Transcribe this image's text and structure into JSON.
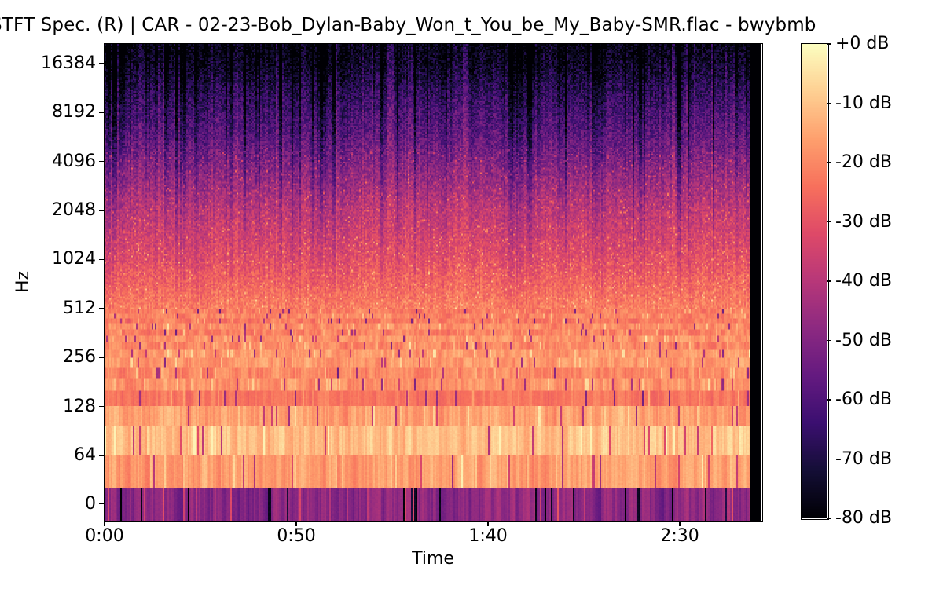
{
  "figure": {
    "background": "#ffffff",
    "axis_color": "#000000",
    "text_color": "#000000"
  },
  "chart_data": {
    "type": "heatmap",
    "subtype": "stft-spectrogram",
    "title": "STFT Spec. (R) | CAR - 02-23-Bob_Dylan-Baby_Won_t_You_be_My_Baby-SMR.flac - bwybmb",
    "xlabel": "Time",
    "ylabel": "Hz",
    "x_ticks": [
      {
        "label": "0:00",
        "seconds": 0
      },
      {
        "label": "0:50",
        "seconds": 50
      },
      {
        "label": "1:40",
        "seconds": 100
      },
      {
        "label": "2:30",
        "seconds": 150
      }
    ],
    "y_scale": "log",
    "y_ticks": [
      {
        "label": "16384",
        "hz": 16384
      },
      {
        "label": "8192",
        "hz": 8192
      },
      {
        "label": "4096",
        "hz": 4096
      },
      {
        "label": "2048",
        "hz": 2048
      },
      {
        "label": "1024",
        "hz": 1024
      },
      {
        "label": "512",
        "hz": 512
      },
      {
        "label": "256",
        "hz": 256
      },
      {
        "label": "128",
        "hz": 128
      },
      {
        "label": "64",
        "hz": 64
      },
      {
        "label": "0",
        "hz": 0
      }
    ],
    "duration_seconds": 171.3,
    "audio_end_seconds": 168.4,
    "colorbar": {
      "unit": "dB",
      "max_db": 0,
      "min_db": -80,
      "tick_step_db": 10,
      "ticks": [
        "+0 dB",
        "-10 dB",
        "-20 dB",
        "-30 dB",
        "-40 dB",
        "-50 dB",
        "-60 dB",
        "-70 dB",
        "-80 dB"
      ],
      "colormap": "magma"
    },
    "colormap_stops": [
      [
        0.0,
        "#000004"
      ],
      [
        0.1,
        "#140e36"
      ],
      [
        0.2,
        "#3b0f70"
      ],
      [
        0.3,
        "#641a80"
      ],
      [
        0.4,
        "#8c2981"
      ],
      [
        0.5,
        "#b73779"
      ],
      [
        0.6,
        "#de4968"
      ],
      [
        0.7,
        "#f7705c"
      ],
      [
        0.8,
        "#fe9f6d"
      ],
      [
        0.9,
        "#fecf92"
      ],
      [
        1.0,
        "#fcfdbf"
      ]
    ],
    "fft_bin_hz": 32,
    "low_band_mean_db": [
      -48,
      -16,
      -10.5,
      -16,
      -23,
      -18,
      -20,
      -17,
      -17,
      -20,
      -18,
      -21,
      -19,
      -22,
      -20,
      -22
    ],
    "spectral_envelope_db": [
      [
        512,
        -21
      ],
      [
        724,
        -26
      ],
      [
        1024,
        -31
      ],
      [
        1448,
        -35
      ],
      [
        2048,
        -39
      ],
      [
        2896,
        -45
      ],
      [
        4096,
        -51
      ],
      [
        5793,
        -57
      ],
      [
        8192,
        -62
      ],
      [
        11585,
        -68
      ],
      [
        16384,
        -75
      ],
      [
        23170,
        -79
      ]
    ],
    "quiet_sections": [
      {
        "start_s": 104,
        "end_s": 109,
        "depth_db": 9
      },
      {
        "start_s": 128,
        "end_s": 130,
        "depth_db": 5
      }
    ],
    "noise_seed": 1337
  }
}
